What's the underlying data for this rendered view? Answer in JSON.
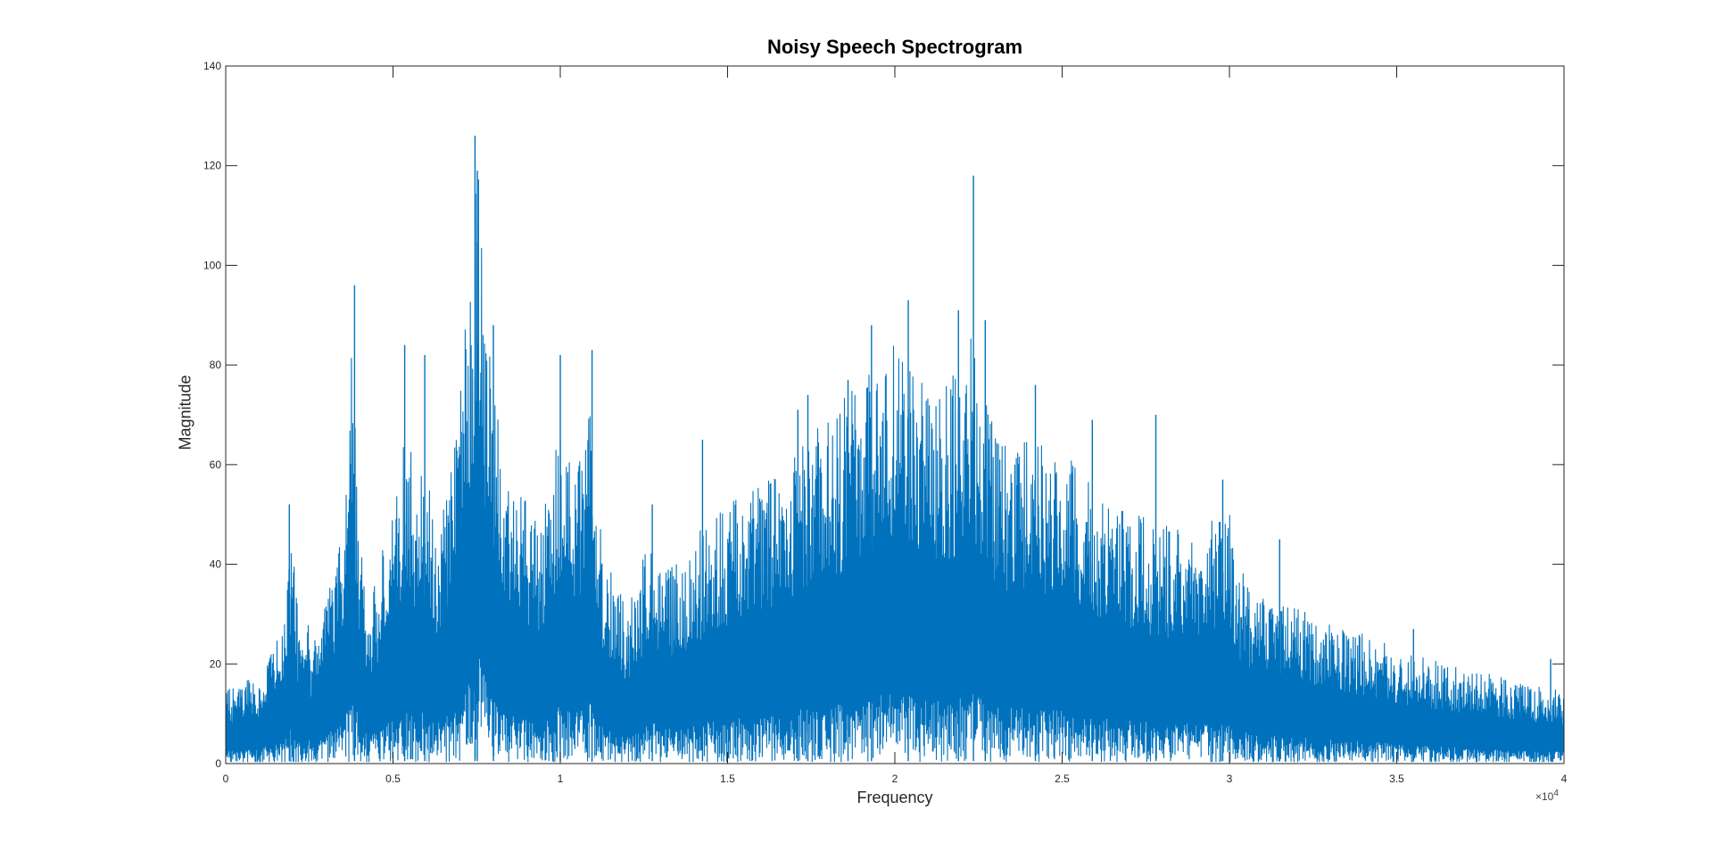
{
  "chart_data": {
    "type": "line",
    "title": "Noisy Speech Spectrogram",
    "xlabel": "Frequency",
    "ylabel": "Magnitude",
    "xlim": [
      0,
      40000
    ],
    "ylim": [
      0,
      140
    ],
    "x_ticks": [
      0,
      5000,
      10000,
      15000,
      20000,
      25000,
      30000,
      35000,
      40000
    ],
    "x_tick_labels": [
      "0",
      "0.5",
      "1",
      "1.5",
      "2",
      "2.5",
      "3",
      "3.5",
      "4"
    ],
    "x_exponent_base": "×10",
    "x_exponent": "4",
    "y_ticks": [
      0,
      20,
      40,
      60,
      80,
      100,
      120,
      140
    ],
    "y_tick_labels": [
      "0",
      "20",
      "40",
      "60",
      "80",
      "100",
      "120",
      "140"
    ],
    "grid": false,
    "series_color": "#0072BD",
    "envelope": {
      "x": [
        0,
        1000,
        1800,
        1950,
        2100,
        2300,
        2450,
        2600,
        3500,
        3750,
        3850,
        4000,
        4300,
        5000,
        5400,
        5700,
        6000,
        6300,
        6700,
        7100,
        7400,
        7500,
        7650,
        7800,
        8000,
        8300,
        9000,
        9500,
        10000,
        10400,
        10900,
        11000,
        11300,
        12000,
        12600,
        13500,
        14500,
        15500,
        16500,
        17500,
        18500,
        19500,
        20000,
        20300,
        20700,
        21200,
        21800,
        22300,
        22700,
        23300,
        24000,
        24700,
        25300,
        26000,
        27000,
        28000,
        29000,
        30000,
        30200,
        31000,
        32000,
        33000,
        34000,
        35000,
        36000,
        37000,
        38000,
        39000,
        40000
      ],
      "y": [
        14,
        17,
        28,
        48,
        33,
        22,
        28,
        22,
        45,
        80,
        70,
        45,
        30,
        50,
        65,
        55,
        58,
        45,
        55,
        80,
        100,
        120,
        115,
        85,
        75,
        55,
        50,
        48,
        68,
        55,
        70,
        55,
        40,
        30,
        42,
        38,
        48,
        52,
        58,
        63,
        70,
        76,
        82,
        80,
        74,
        70,
        75,
        83,
        70,
        62,
        62,
        60,
        58,
        52,
        48,
        46,
        44,
        50,
        38,
        32,
        30,
        27,
        25,
        22,
        20,
        18,
        17,
        15,
        14
      ]
    },
    "peaks": [
      {
        "x": 1900,
        "y": 52
      },
      {
        "x": 3850,
        "y": 96
      },
      {
        "x": 5350,
        "y": 84
      },
      {
        "x": 5950,
        "y": 82
      },
      {
        "x": 7450,
        "y": 126
      },
      {
        "x": 7520,
        "y": 119
      },
      {
        "x": 8000,
        "y": 88
      },
      {
        "x": 10000,
        "y": 82
      },
      {
        "x": 10950,
        "y": 83
      },
      {
        "x": 12750,
        "y": 52
      },
      {
        "x": 14250,
        "y": 65
      },
      {
        "x": 17100,
        "y": 71
      },
      {
        "x": 17400,
        "y": 74
      },
      {
        "x": 18600,
        "y": 77
      },
      {
        "x": 19300,
        "y": 88
      },
      {
        "x": 20400,
        "y": 93
      },
      {
        "x": 21900,
        "y": 91
      },
      {
        "x": 22350,
        "y": 118
      },
      {
        "x": 22700,
        "y": 89
      },
      {
        "x": 24200,
        "y": 76
      },
      {
        "x": 25900,
        "y": 69
      },
      {
        "x": 27800,
        "y": 70
      },
      {
        "x": 29800,
        "y": 57
      },
      {
        "x": 31500,
        "y": 45
      },
      {
        "x": 35500,
        "y": 27
      },
      {
        "x": 39600,
        "y": 21
      }
    ],
    "notches": [
      {
        "x": 6000,
        "y": 6
      },
      {
        "x": 11000,
        "y": 9
      },
      {
        "x": 12800,
        "y": 8
      }
    ]
  }
}
